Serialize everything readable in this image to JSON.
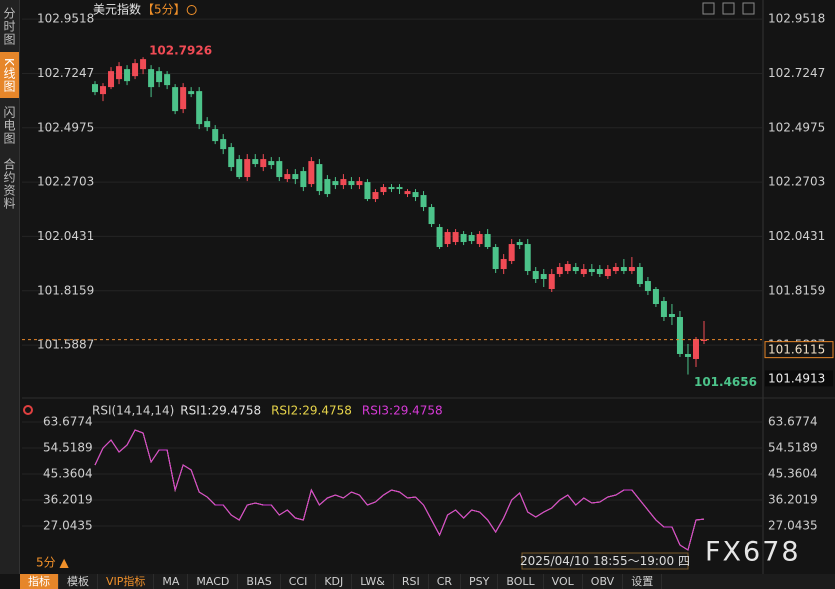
{
  "sidebar": [
    "分时图",
    "K线图",
    "闪电图",
    "合约资料"
  ],
  "toolbar": [
    "指标",
    "模板",
    "VIP指标",
    "MA",
    "MACD",
    "BIAS",
    "CCI",
    "KDJ",
    "LW&",
    "RSI",
    "CR",
    "PSY",
    "BOLL",
    "VOL",
    "OBV",
    "设置"
  ],
  "period_selector": "5分 ▲",
  "time_label": "2025/04/10 18:55～19:00 四",
  "watermark": "FX678",
  "chart_data": [
    {
      "type": "candlestick",
      "title": "美元指数",
      "period_label": "【5分】",
      "up_color": "#f04b55",
      "down_color": "#4cc38a",
      "grid": true,
      "ylim": [
        101.38,
        102.99
      ],
      "yticks": [
        102.9518,
        102.7247,
        102.4975,
        102.2703,
        102.0431,
        101.8159,
        101.5887
      ],
      "marker_price": 101.4913,
      "open": [
        102.6801,
        102.6383,
        102.6676,
        102.701,
        102.7428,
        102.7135,
        102.7428,
        102.7428,
        102.7344,
        102.7219,
        102.6676,
        102.5756,
        102.6508,
        102.6508,
        102.5254,
        102.492,
        102.4502,
        102.4168,
        102.3666,
        102.2914,
        102.3666,
        102.3332,
        102.3582,
        102.3582,
        102.283,
        102.3039,
        102.3164,
        102.2621,
        102.3457,
        102.283,
        102.2746,
        102.2579,
        102.2746,
        102.2579,
        102.2705,
        102.1994,
        102.2287,
        102.2496,
        102.2496,
        102.2203,
        102.2287,
        102.2161,
        102.166,
        102.0824,
        102.0113,
        102.0197,
        102.0531,
        102.0489,
        102.0113,
        102.0531,
        101.9988,
        101.9068,
        101.9402,
        102.0197,
        102.0113,
        101.8984,
        101.8859,
        101.8232,
        101.8859,
        101.8984,
        101.9152,
        101.8859,
        101.9068,
        101.9068,
        101.8775,
        101.8984,
        101.9152,
        101.8984,
        101.9152,
        101.8566,
        101.8232,
        101.773,
        101.7187,
        101.7062,
        101.5515,
        101.5306,
        101.6058
      ],
      "high": [
        102.6926,
        102.6843,
        102.7512,
        102.7721,
        102.7595,
        102.7846,
        102.7926,
        102.7595,
        102.7512,
        102.7344,
        102.6801,
        102.6843,
        102.6676,
        102.6676,
        102.5422,
        102.5087,
        102.4711,
        102.4335,
        102.3833,
        102.3875,
        102.3875,
        102.3875,
        102.375,
        102.375,
        102.3248,
        102.3248,
        102.3332,
        102.375,
        102.3666,
        102.2997,
        102.2914,
        102.3039,
        102.2914,
        102.2914,
        102.283,
        102.2412,
        102.2621,
        102.2621,
        102.2621,
        102.2412,
        102.2412,
        102.2328,
        102.1785,
        102.0949,
        102.074,
        102.074,
        102.0656,
        102.0615,
        102.0656,
        102.074,
        102.0113,
        101.9695,
        102.0322,
        102.0322,
        102.0322,
        101.9152,
        101.9068,
        101.9068,
        101.9319,
        101.9402,
        101.9319,
        101.9277,
        101.9277,
        101.9235,
        101.9235,
        101.9319,
        101.9486,
        101.957,
        101.9319,
        101.8734,
        101.8316,
        101.7898,
        101.7605,
        101.7312,
        101.5933,
        101.6226,
        101.6894
      ],
      "low": [
        102.6341,
        102.609,
        102.6592,
        102.6801,
        102.6759,
        102.701,
        102.7219,
        102.6258,
        102.6676,
        102.6592,
        102.5547,
        102.5589,
        102.6258,
        102.492,
        102.4836,
        102.4293,
        102.3875,
        102.3164,
        102.283,
        102.2746,
        102.3332,
        102.3164,
        102.3248,
        102.2746,
        102.2705,
        102.2621,
        102.2328,
        102.2496,
        102.2161,
        102.2078,
        102.2412,
        102.2412,
        102.2412,
        102.2412,
        102.191,
        102.1869,
        102.2161,
        102.2287,
        102.2203,
        102.2078,
        102.191,
        102.1492,
        102.0824,
        101.9904,
        101.9988,
        102.0071,
        102.0071,
        102.0113,
        101.9988,
        101.9904,
        101.8901,
        101.8859,
        101.9277,
        101.9904,
        101.8817,
        101.8483,
        101.8316,
        101.8107,
        101.8734,
        101.8859,
        101.8859,
        101.8734,
        101.8775,
        101.8734,
        101.865,
        101.8859,
        101.8859,
        101.8859,
        101.8316,
        101.7981,
        101.748,
        101.6894,
        101.6727,
        101.539,
        101.4656,
        101.4972,
        101.5933
      ],
      "close": [
        102.6467,
        102.6717,
        102.7344,
        102.7553,
        102.6926,
        102.7679,
        102.7846,
        102.6676,
        102.6885,
        102.6759,
        102.5672,
        102.6676,
        102.6383,
        102.5129,
        102.5004,
        102.4418,
        102.4084,
        102.3332,
        102.2914,
        102.3666,
        102.3457,
        102.3666,
        102.3415,
        102.2914,
        102.3039,
        102.283,
        102.2496,
        102.3582,
        102.2328,
        102.2203,
        102.2579,
        102.283,
        102.2579,
        102.2746,
        102.1994,
        102.2287,
        102.2496,
        102.2412,
        102.2412,
        102.2328,
        102.2078,
        102.166,
        102.0949,
        101.9988,
        102.0615,
        102.0615,
        102.0197,
        102.0238,
        102.0531,
        101.9988,
        101.9068,
        101.9486,
        102.0113,
        102.0071,
        101.8984,
        101.865,
        101.865,
        101.8859,
        101.9152,
        101.9277,
        101.8984,
        101.9068,
        101.8943,
        101.8859,
        101.9068,
        101.9152,
        101.8984,
        101.9152,
        101.8441,
        101.8148,
        101.7605,
        101.7062,
        101.7062,
        101.5515,
        101.539,
        101.6142,
        101.6115
      ]
    },
    {
      "type": "line",
      "title": "RSI(14,14,14)",
      "grid": true,
      "ylim": [
        16.83,
        69.67
      ],
      "yticks": [
        63.6774,
        54.5189,
        45.3604,
        36.2019,
        27.0435
      ],
      "series": [
        {
          "name": "RSI1:29.4758",
          "color": "#e0e0e0"
        },
        {
          "name": "RSI2:29.4758",
          "color": "#e6d34a"
        },
        {
          "name": "RSI3:29.4758",
          "color": "#d63ad6"
        }
      ],
      "values": [
        48.53,
        54.52,
        57.34,
        53.11,
        55.58,
        60.86,
        59.8,
        49.59,
        53.81,
        53.81,
        39.72,
        48.53,
        46.77,
        39.02,
        37.26,
        34.44,
        34.44,
        30.92,
        29.16,
        34.44,
        35.14,
        34.44,
        34.44,
        30.92,
        32.68,
        29.86,
        29.16,
        39.72,
        34.44,
        36.91,
        37.96,
        36.91,
        39.02,
        37.96,
        34.44,
        35.5,
        37.96,
        39.72,
        39.02,
        36.91,
        37.26,
        34.44,
        29.16,
        23.87,
        30.92,
        32.68,
        29.86,
        32.68,
        31.97,
        29.16,
        24.93,
        29.86,
        36.2,
        38.67,
        31.97,
        30.21,
        31.97,
        33.38,
        36.2,
        37.96,
        34.44,
        36.91,
        35.14,
        35.5,
        37.26,
        37.96,
        39.72,
        39.72,
        36.2,
        32.68,
        29.16,
        26.69,
        26.69,
        20.35,
        18.59,
        29.16,
        29.4758
      ]
    }
  ]
}
